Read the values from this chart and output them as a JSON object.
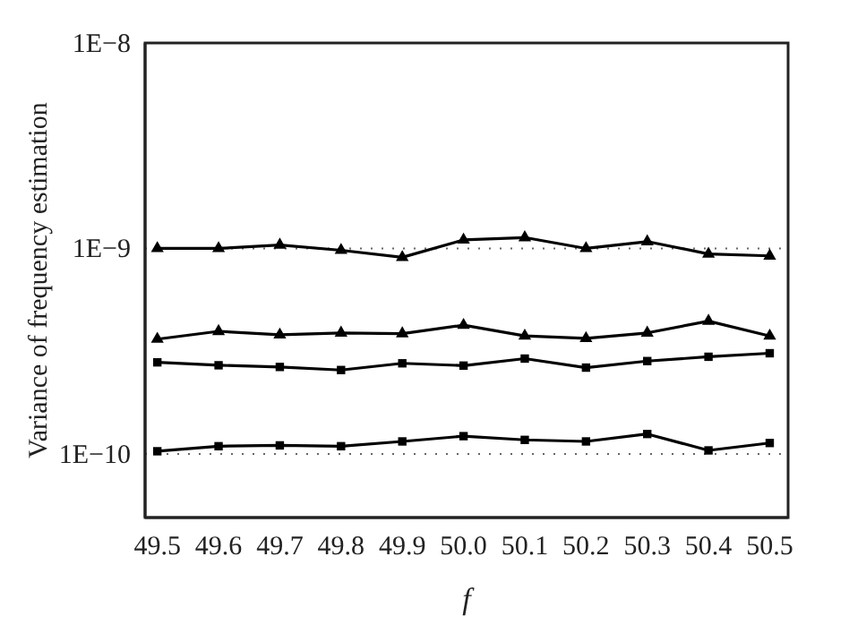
{
  "chart_data": {
    "type": "line",
    "xlabel": "f",
    "ylabel": "Variance of frequency estimation",
    "x": [
      49.5,
      49.6,
      49.7,
      49.8,
      49.9,
      50.0,
      50.1,
      50.2,
      50.3,
      50.4,
      50.5
    ],
    "series": [
      {
        "color": "#000000",
        "marker": "triangle",
        "values": [
          1e-09,
          1e-09,
          1.04e-09,
          9.8e-10,
          9.05e-10,
          1.1e-09,
          1.13e-09,
          1e-09,
          1.08e-09,
          9.4e-10,
          9.2e-10
        ]
      },
      {
        "color": "#000000",
        "marker": "triangle",
        "values": [
          3.62e-10,
          3.95e-10,
          3.8e-10,
          3.88e-10,
          3.85e-10,
          4.23e-10,
          3.75e-10,
          3.65e-10,
          3.88e-10,
          4.43e-10,
          3.75e-10
        ]
      },
      {
        "color": "#000000",
        "marker": "square",
        "values": [
          2.79e-10,
          2.7e-10,
          2.65e-10,
          2.56e-10,
          2.76e-10,
          2.69e-10,
          2.91e-10,
          2.63e-10,
          2.83e-10,
          2.97e-10,
          3.09e-10
        ]
      },
      {
        "color": "#000000",
        "marker": "square",
        "values": [
          1.03e-10,
          1.09e-10,
          1.1e-10,
          1.09e-10,
          1.15e-10,
          1.22e-10,
          1.17e-10,
          1.15e-10,
          1.25e-10,
          1.04e-10,
          1.13e-10
        ]
      }
    ],
    "log": "y",
    "xlim": [
      49.48,
      50.53
    ],
    "xticks": [
      {
        "value": 49.5,
        "label": "49.5"
      },
      {
        "value": 49.6,
        "label": "49.6"
      },
      {
        "value": 49.7,
        "label": "49.7"
      },
      {
        "value": 49.8,
        "label": "49.8"
      },
      {
        "value": 49.9,
        "label": "49.9"
      },
      {
        "value": 50.0,
        "label": "50.0"
      },
      {
        "value": 50.1,
        "label": "50.1"
      },
      {
        "value": 50.2,
        "label": "50.2"
      },
      {
        "value": 50.3,
        "label": "50.3"
      },
      {
        "value": 50.4,
        "label": "50.4"
      },
      {
        "value": 50.5,
        "label": "50.5"
      }
    ],
    "ylim": [
      4.9e-11,
      1e-08
    ],
    "yticks": [
      {
        "value": 1e-10,
        "label": "1E−10"
      },
      {
        "value": 1e-09,
        "label": "1E−9"
      },
      {
        "value": 1e-08,
        "label": "1E−8"
      }
    ],
    "grid": "y",
    "line_style": "solid"
  }
}
